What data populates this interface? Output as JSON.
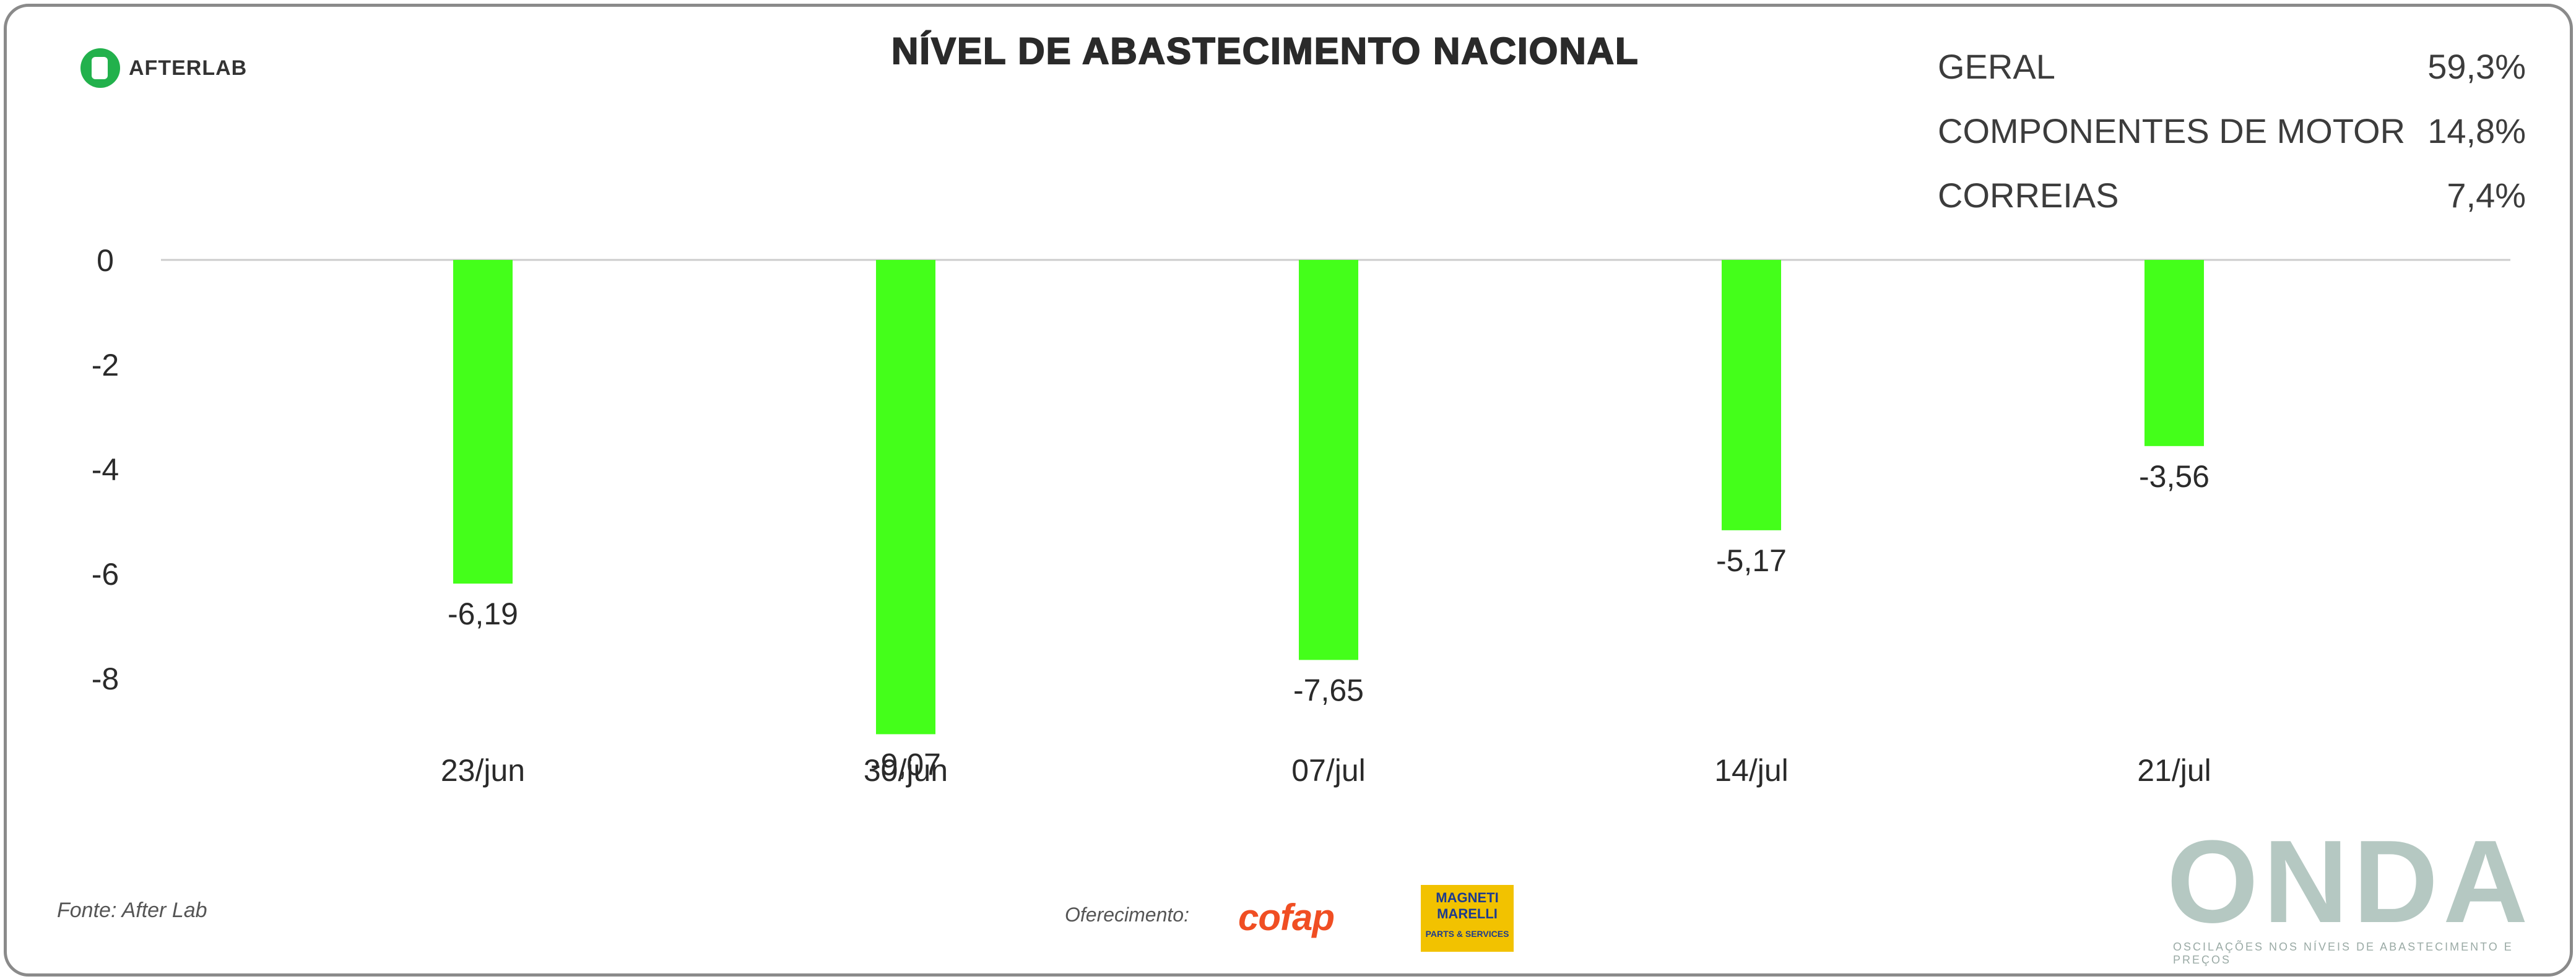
{
  "header": {
    "title": "NÍVEL DE ABASTECIMENTO NACIONAL"
  },
  "stats": [
    {
      "label": "GERAL",
      "value": "59,3%"
    },
    {
      "label": "COMPONENTES DE MOTOR",
      "value": "14,8%"
    },
    {
      "label": "CORREIAS",
      "value": "7,4%"
    }
  ],
  "logos": {
    "afterlab": "AFTERLAB",
    "cofap": "cofap",
    "magneti_top": "MAGNETI",
    "magneti_bottom": "MARELLI",
    "magneti_sub": "PARTS & SERVICES",
    "onda": "ONDA",
    "onda_sub": "OSCILAÇÕES NOS NÍVEIS DE ABASTECIMENTO E PREÇOS"
  },
  "footer": {
    "source": "Fonte: After Lab",
    "sponsor": "Oferecimento:"
  },
  "colors": {
    "bar": "#44ff1a",
    "axis": "#cccccc",
    "text": "#2a2a2a",
    "onda": "#b5c8c2"
  },
  "chart_data": {
    "type": "bar",
    "categories": [
      "23/jun",
      "30/jun",
      "07/jul",
      "14/jul",
      "21/jul"
    ],
    "values": [
      -6.19,
      -9.07,
      -7.65,
      -5.17,
      -3.56
    ],
    "data_labels": [
      "-6,19",
      "-9,07",
      "-7,65",
      "-5,17",
      "-3,56"
    ],
    "yticks": [
      "0",
      "-2",
      "-4",
      "-6",
      "-8"
    ],
    "ytick_values": [
      0,
      -2,
      -4,
      -6,
      -8
    ],
    "ylim": [
      -8,
      0
    ],
    "title": "NÍVEL DE ABASTECIMENTO NACIONAL",
    "xlabel": "",
    "ylabel": "",
    "grid": false,
    "legend": "none"
  }
}
